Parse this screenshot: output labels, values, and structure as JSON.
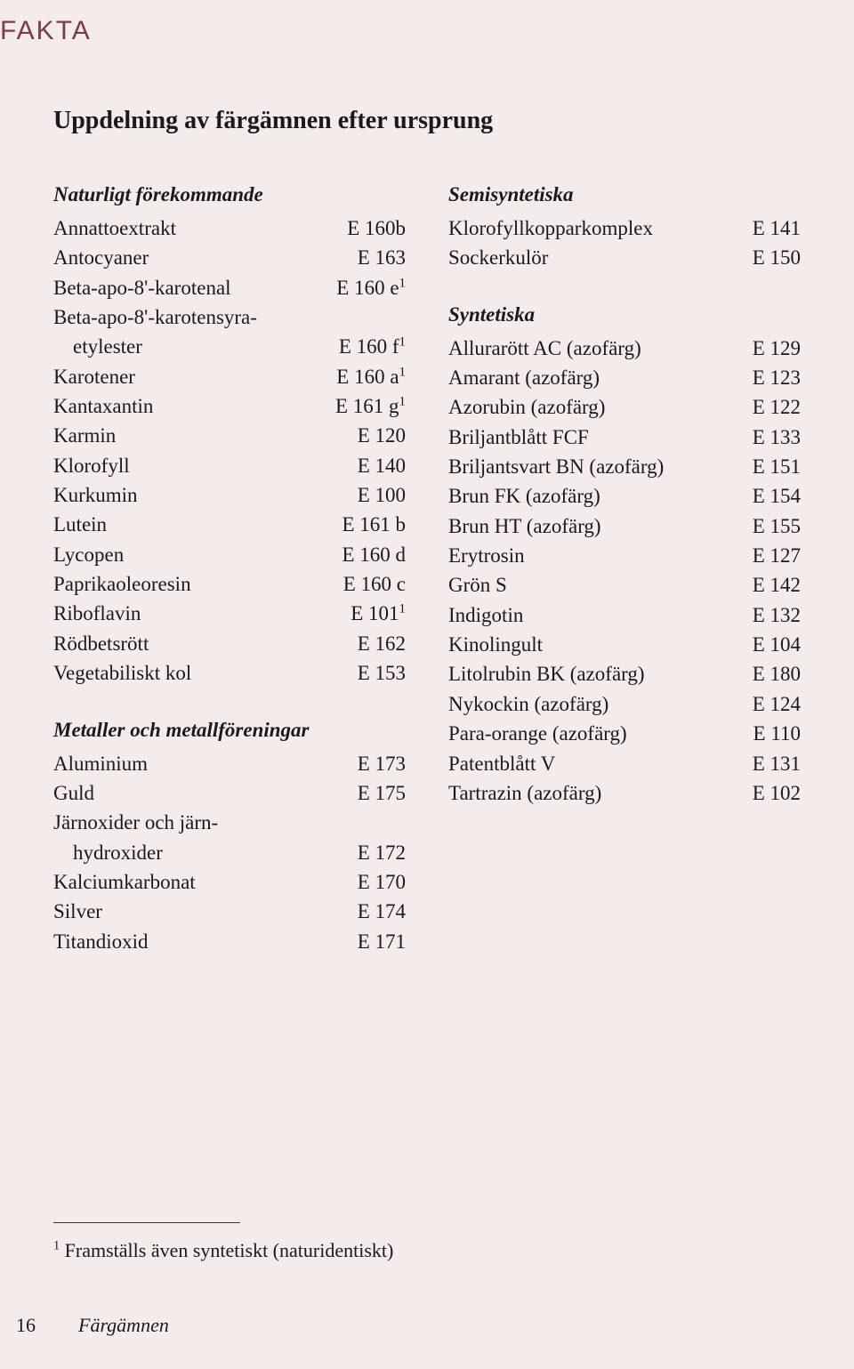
{
  "header": {
    "fakta": "FAKTA"
  },
  "title": "Uppdelning av färgämnen efter ursprung",
  "sections": {
    "naturligt": {
      "title": "Naturligt förekommande",
      "items": [
        {
          "name": "Annattoextrakt",
          "code": "E 160b"
        },
        {
          "name": "Antocyaner",
          "code": "E 163"
        },
        {
          "name": "Beta-apo-8'-karotenal",
          "code": "E 160 e",
          "sup": "1"
        },
        {
          "name": "Beta-apo-8'-karotensyra-",
          "code": ""
        },
        {
          "name": "etylester",
          "code": "E 160 f",
          "sup": "1",
          "indent": true
        },
        {
          "name": "Karotener",
          "code": "E 160 a",
          "sup": "1"
        },
        {
          "name": "Kantaxantin",
          "code": "E 161 g",
          "sup": "1"
        },
        {
          "name": "Karmin",
          "code": "E 120"
        },
        {
          "name": "Klorofyll",
          "code": "E 140"
        },
        {
          "name": "Kurkumin",
          "code": "E 100"
        },
        {
          "name": "Lutein",
          "code": "E 161 b"
        },
        {
          "name": "Lycopen",
          "code": "E 160 d"
        },
        {
          "name": "Paprikaoleoresin",
          "code": "E 160 c"
        },
        {
          "name": "Riboflavin",
          "code": "E 101",
          "sup": "1"
        },
        {
          "name": "Rödbetsrött",
          "code": "E 162"
        },
        {
          "name": "Vegetabiliskt kol",
          "code": "E 153"
        }
      ]
    },
    "metaller": {
      "title": "Metaller och metallföreningar",
      "items": [
        {
          "name": "Aluminium",
          "code": "E 173"
        },
        {
          "name": "Guld",
          "code": "E 175"
        },
        {
          "name": "Järnoxider och järn-",
          "code": ""
        },
        {
          "name": "hydroxider",
          "code": "E 172",
          "indent": true
        },
        {
          "name": "Kalciumkarbonat",
          "code": "E 170"
        },
        {
          "name": "Silver",
          "code": "E 174"
        },
        {
          "name": "Titandioxid",
          "code": "E 171"
        }
      ]
    },
    "semi": {
      "title": "Semisyntetiska",
      "items": [
        {
          "name": "Klorofyllkopparkomplex",
          "code": "E 141"
        },
        {
          "name": "Sockerkulör",
          "code": "E 150"
        }
      ]
    },
    "synt": {
      "title": "Syntetiska",
      "items": [
        {
          "name": "Allurarött AC (azofärg)",
          "code": "E 129"
        },
        {
          "name": "Amarant (azofärg)",
          "code": "E 123"
        },
        {
          "name": "Azorubin (azofärg)",
          "code": "E 122"
        },
        {
          "name": "Briljantblått FCF",
          "code": "E 133"
        },
        {
          "name": "Briljantsvart BN (azofärg)",
          "code": "E 151"
        },
        {
          "name": "Brun FK (azofärg)",
          "code": "E 154"
        },
        {
          "name": "Brun HT (azofärg)",
          "code": "E 155"
        },
        {
          "name": "Erytrosin",
          "code": "E 127"
        },
        {
          "name": "Grön S",
          "code": "E 142"
        },
        {
          "name": "Indigotin",
          "code": "E 132"
        },
        {
          "name": "Kinolingult",
          "code": "E 104"
        },
        {
          "name": "Litolrubin BK (azofärg)",
          "code": "E 180"
        },
        {
          "name": "Nykockin (azofärg)",
          "code": "E 124"
        },
        {
          "name": "Para-orange (azofärg)",
          "code": "E 110"
        },
        {
          "name": "Patentblått V",
          "code": "E 131"
        },
        {
          "name": "Tartrazin (azofärg)",
          "code": "E 102"
        }
      ]
    }
  },
  "footnote": {
    "marker": "1",
    "text": " Framställs även syntetiskt (naturidentiskt)"
  },
  "footer": {
    "page": "16",
    "title": "Färgämnen"
  }
}
